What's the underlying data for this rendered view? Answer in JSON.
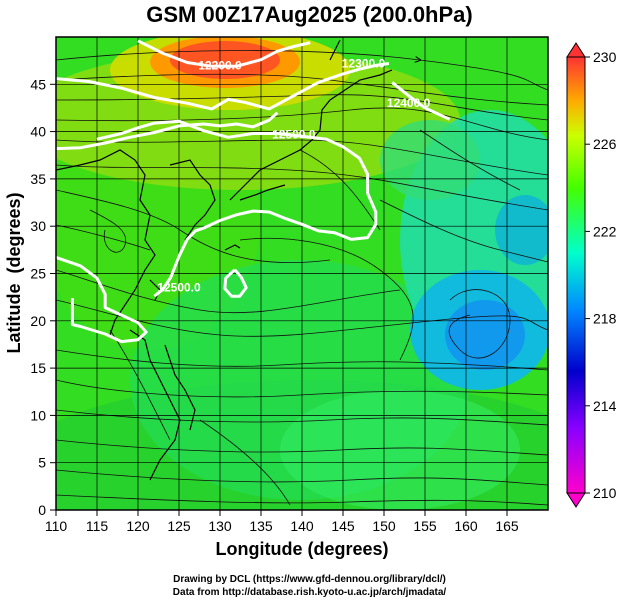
{
  "title": "GSM 00Z17Aug2025 (200.0hPa)",
  "chart_data": {
    "type": "map",
    "variable": "geopotential height contours over temperature shading with streamlines",
    "level": "200.0hPa",
    "xlabel": "Longitude (degrees)",
    "ylabel": "Latitude  (degrees)",
    "xlim": [
      110,
      170
    ],
    "ylim": [
      0,
      50
    ],
    "x_ticks": [
      110,
      115,
      120,
      125,
      130,
      135,
      140,
      145,
      150,
      155,
      160,
      165
    ],
    "y_ticks": [
      0,
      5,
      10,
      15,
      20,
      25,
      30,
      35,
      40,
      45
    ],
    "contours": [
      {
        "label": "12200.0",
        "label_lon": 130.0,
        "label_lat": 47.0,
        "path": [
          [
            120,
            49.6
          ],
          [
            123,
            48.3
          ],
          [
            126,
            47.3
          ],
          [
            129,
            46.9
          ],
          [
            132,
            46.9
          ],
          [
            135,
            47.6
          ],
          [
            137,
            48.5
          ],
          [
            139,
            49.0
          ],
          [
            141,
            49.4
          ]
        ]
      },
      {
        "label": "12300.0",
        "label_lon": 147.5,
        "label_lat": 47.2,
        "path": [
          [
            110,
            45.6
          ],
          [
            114,
            45.3
          ],
          [
            118,
            44.6
          ],
          [
            122,
            43.6
          ],
          [
            126,
            43.0
          ],
          [
            129,
            42.4
          ],
          [
            131,
            43.4
          ],
          [
            133,
            43.1
          ],
          [
            136,
            42.4
          ],
          [
            139,
            43.8
          ],
          [
            142,
            45.2
          ],
          [
            145,
            46.1
          ],
          [
            147,
            46.6
          ],
          [
            149,
            47.0
          ],
          [
            150.6,
            47.2
          ]
        ]
      },
      {
        "label": "",
        "label_lon": null,
        "label_lat": null,
        "path": [
          [
            110,
            38.2
          ],
          [
            113,
            38.3
          ],
          [
            116,
            38.8
          ],
          [
            119,
            39.4
          ],
          [
            122,
            39.9
          ],
          [
            125,
            40.6
          ],
          [
            128,
            40.8
          ],
          [
            130,
            40.6
          ],
          [
            132,
            40.8
          ],
          [
            134,
            40.5
          ],
          [
            136,
            41.2
          ],
          [
            137,
            42.0
          ]
        ]
      },
      {
        "label": "12400.0",
        "label_lon": 153.0,
        "label_lat": 43.0,
        "path": [
          [
            151,
            45.2
          ],
          [
            153,
            43.8
          ],
          [
            155,
            42.5
          ],
          [
            158,
            41.3
          ]
        ]
      },
      {
        "label": "12500.0",
        "label_lon": 139.0,
        "label_lat": 39.7,
        "path": [
          [
            115,
            39.2
          ],
          [
            118,
            39.8
          ],
          [
            120,
            40.4
          ],
          [
            122,
            40.9
          ],
          [
            125,
            41.1
          ],
          [
            128,
            40.1
          ],
          [
            131,
            39.4
          ],
          [
            134,
            39.8
          ],
          [
            137,
            39.8
          ],
          [
            140,
            39.5
          ],
          [
            143,
            39.2
          ],
          [
            145,
            38.4
          ],
          [
            147,
            37.2
          ],
          [
            148,
            35.5
          ],
          [
            148,
            33.5
          ],
          [
            149,
            31.5
          ],
          [
            149,
            30.2
          ],
          [
            148,
            28.8
          ],
          [
            146,
            28.6
          ],
          [
            144,
            29.3
          ],
          [
            142,
            29.5
          ],
          [
            140,
            30.2
          ],
          [
            138,
            30.8
          ],
          [
            136,
            31.5
          ],
          [
            134,
            31.6
          ],
          [
            132,
            31.2
          ],
          [
            130,
            30.6
          ],
          [
            128,
            29.8
          ],
          [
            127,
            29.5
          ],
          [
            126,
            28.6
          ],
          [
            125,
            26.8
          ],
          [
            124,
            24.6
          ],
          [
            123,
            23.3
          ],
          [
            122,
            22.6
          ]
        ]
      },
      {
        "label": "12500.0",
        "label_lon": 125.0,
        "label_lat": 23.5,
        "path": [
          [
            110,
            26.7
          ],
          [
            113,
            25.8
          ],
          [
            115,
            24.5
          ],
          [
            116,
            22.8
          ],
          [
            116,
            21.4
          ],
          [
            118,
            20.6
          ],
          [
            120,
            19.8
          ],
          [
            121,
            18.8
          ],
          [
            120,
            18.0
          ],
          [
            118,
            17.8
          ],
          [
            116,
            18.6
          ],
          [
            113,
            19.4
          ],
          [
            112,
            19.6
          ],
          [
            112,
            21.0
          ],
          [
            112,
            22.4
          ]
        ]
      },
      {
        "label": "",
        "label_lon": null,
        "label_lat": null,
        "path": [
          [
            131.8,
            25.4
          ],
          [
            132.6,
            24.6
          ],
          [
            133.2,
            23.5
          ],
          [
            132.4,
            22.6
          ],
          [
            131.4,
            22.6
          ],
          [
            130.6,
            23.4
          ],
          [
            130.7,
            24.5
          ],
          [
            131.8,
            25.4
          ]
        ]
      }
    ],
    "temperature_scale": {
      "unit": "K",
      "range": [
        210,
        230
      ],
      "tick_labels": [
        "230",
        "226",
        "222",
        "218",
        "214",
        "210"
      ]
    },
    "temperature_field_features": [
      {
        "feature": "warm maximum",
        "lon": 130,
        "lat": 47,
        "value": 229
      },
      {
        "feature": "cool minimum",
        "lon": 160,
        "lat": 21,
        "value": 218
      },
      {
        "feature": "cool minimum",
        "lon": 166,
        "lat": 33,
        "value": 219
      }
    ]
  },
  "credits": {
    "line1": "Drawing by DCL (https://www.gfd-dennou.org/library/dcl/)",
    "line2": "Data from http://database.rish.kyoto-u.ac.jp/arch/jmadata/"
  }
}
